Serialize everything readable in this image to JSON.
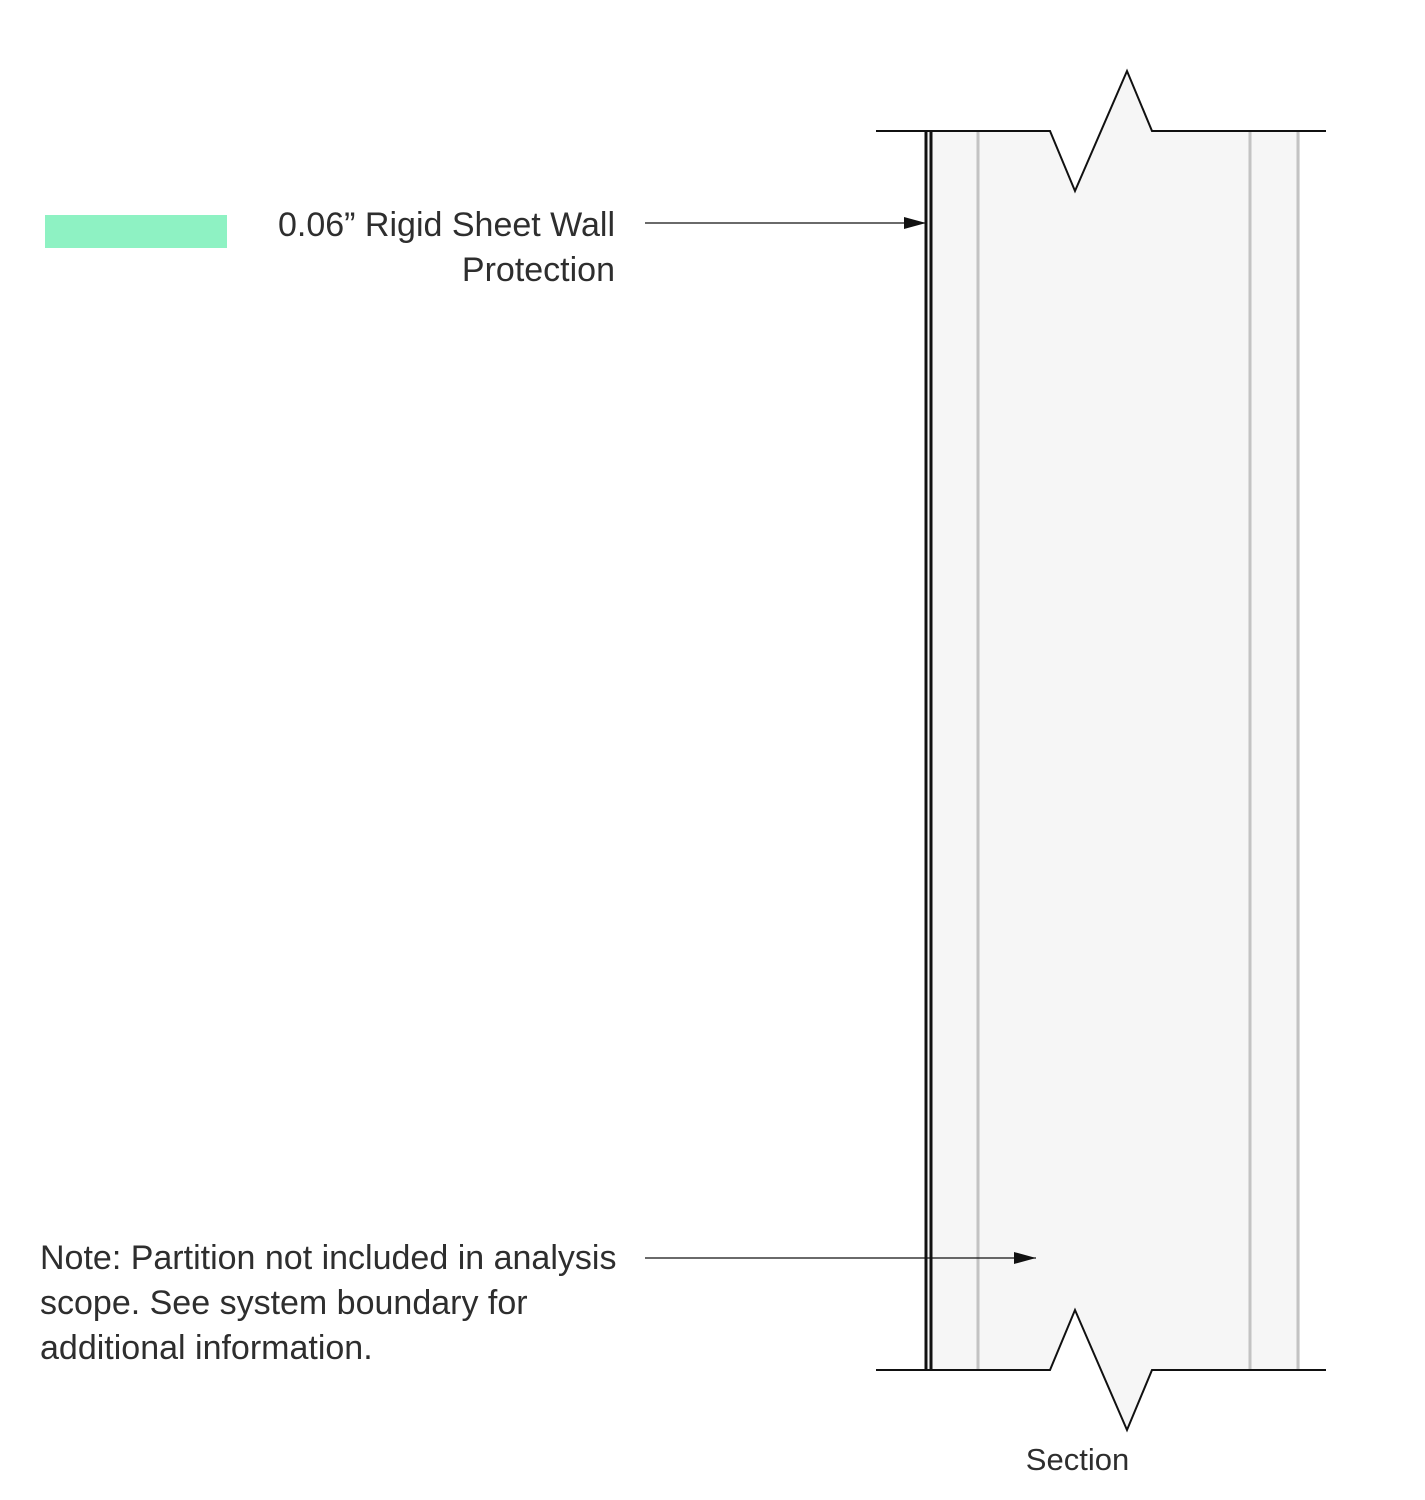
{
  "legend": {
    "swatch_color": "#8ef2c3",
    "label": "0.06” Rigid Sheet Wall Protection"
  },
  "note": "Note: Partition not included in analysis scope. See system boundary for additional information.",
  "section_label": "Section",
  "colors": {
    "wall_fill": "#f6f6f6",
    "stud_line": "#c3c3c3",
    "outline": "#111111"
  }
}
